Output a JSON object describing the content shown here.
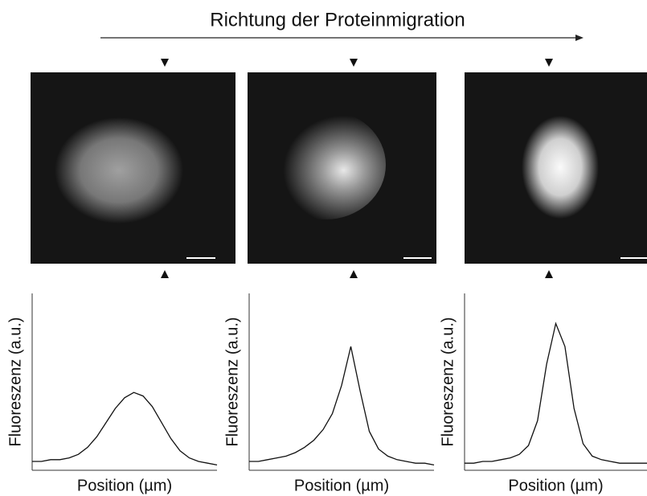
{
  "title": "Richtung der Proteinmigration",
  "chart_data": [
    {
      "type": "line",
      "x_label": "Position (µm)",
      "y_label": "Fluoreszenz (a.u.)",
      "color": "#111111",
      "x": [
        0,
        1,
        2,
        3,
        4,
        5,
        6,
        7,
        8,
        9,
        10,
        11,
        12,
        13,
        14,
        15,
        16,
        17,
        18,
        19,
        20
      ],
      "values": [
        5,
        5,
        6,
        6,
        7,
        9,
        13,
        19,
        27,
        35,
        41,
        44,
        42,
        36,
        27,
        18,
        11,
        7,
        5,
        4,
        3
      ],
      "xlim": [
        0,
        20
      ],
      "ylim": [
        0,
        100
      ]
    },
    {
      "type": "line",
      "x_label": "Position (µm)",
      "y_label": "Fluoreszenz (a.u.)",
      "color": "#111111",
      "x": [
        0,
        1,
        2,
        3,
        4,
        5,
        6,
        7,
        8,
        9,
        10,
        11,
        12,
        13,
        14,
        15,
        16,
        17,
        18,
        19,
        20
      ],
      "values": [
        5,
        5,
        6,
        7,
        8,
        10,
        13,
        17,
        23,
        32,
        48,
        70,
        45,
        22,
        12,
        8,
        6,
        5,
        4,
        4,
        3
      ],
      "xlim": [
        0,
        20
      ],
      "ylim": [
        0,
        100
      ]
    },
    {
      "type": "line",
      "x_label": "Position (µm)",
      "y_label": "Fluoreszenz (a.u.)",
      "color": "#111111",
      "x": [
        0,
        1,
        2,
        3,
        4,
        5,
        6,
        7,
        8,
        9,
        10,
        11,
        12,
        13,
        14,
        15,
        16,
        17,
        18,
        19,
        20
      ],
      "values": [
        4,
        4,
        5,
        5,
        6,
        7,
        9,
        14,
        28,
        60,
        83,
        70,
        35,
        15,
        8,
        6,
        5,
        4,
        4,
        4,
        4
      ],
      "xlim": [
        0,
        20
      ],
      "ylim": [
        0,
        100
      ]
    }
  ]
}
